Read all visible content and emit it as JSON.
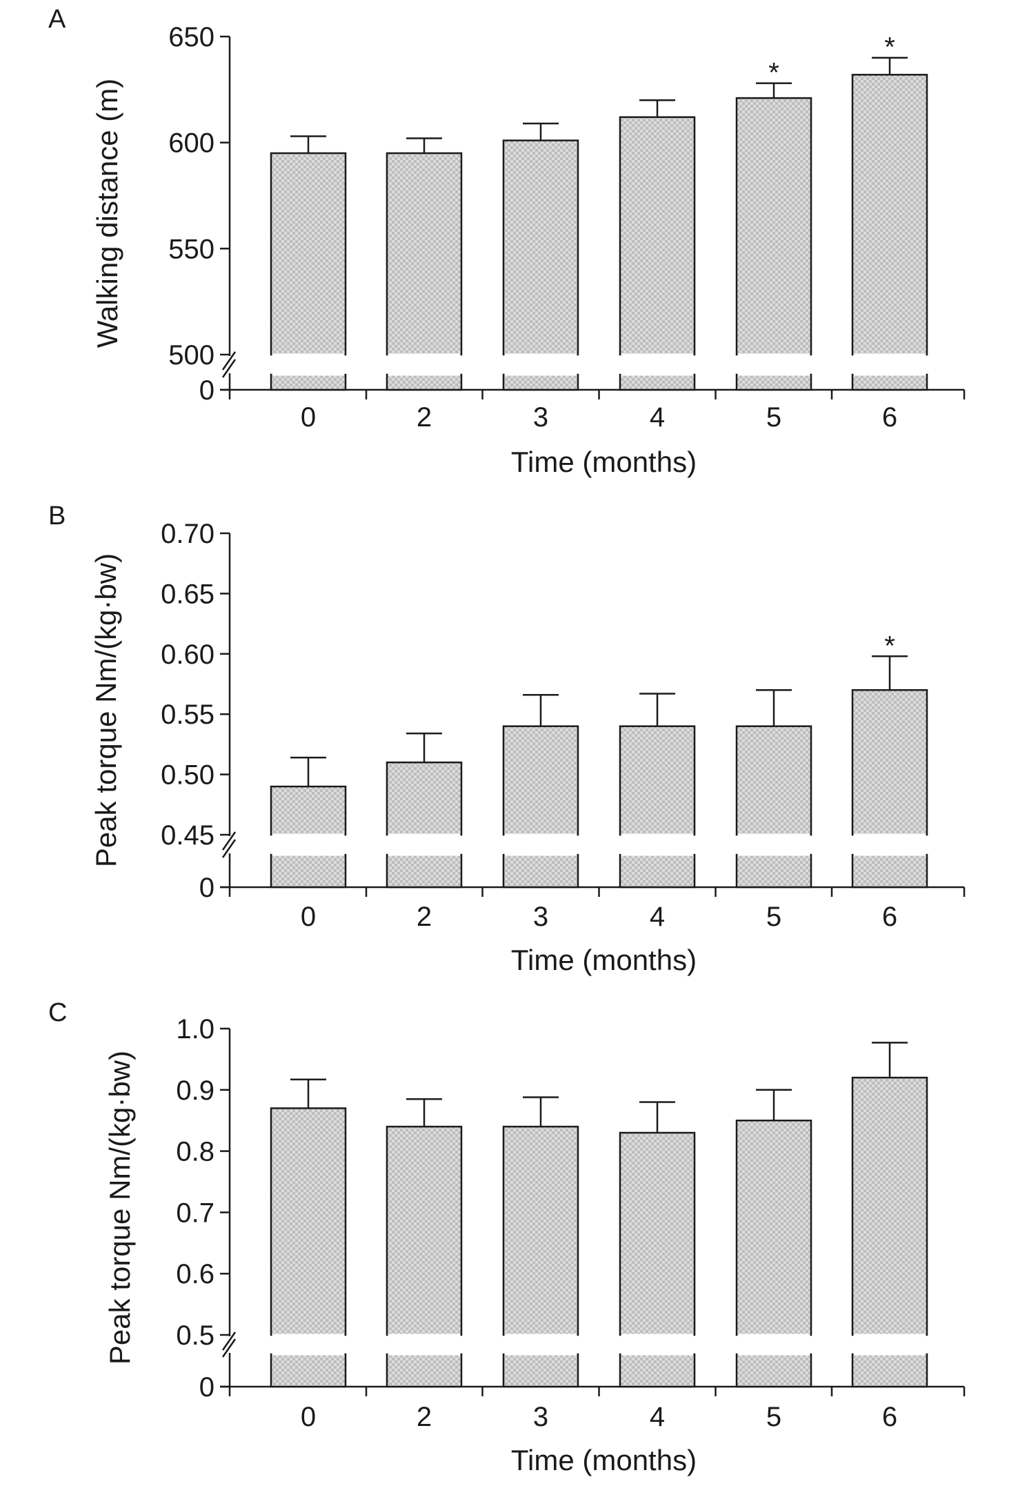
{
  "chart_data": [
    {
      "type": "bar",
      "panel_label": "A",
      "xlabel": "Time (months)",
      "ylabel": "Walking distance (m)",
      "categories": [
        "0",
        "2",
        "3",
        "4",
        "5",
        "6"
      ],
      "values": [
        595,
        595,
        601,
        612,
        621,
        632
      ],
      "error_upper": [
        8,
        7,
        8,
        8,
        7,
        8
      ],
      "significance": [
        "",
        "",
        "",
        "",
        "*",
        "*"
      ],
      "ylim": [
        500,
        650
      ],
      "yticks": [
        "0",
        "500",
        "550",
        "600",
        "650"
      ],
      "axis_break": true,
      "grid": false
    },
    {
      "type": "bar",
      "panel_label": "B",
      "xlabel": "Time (months)",
      "ylabel": "Peak torque Nm/(kg·bw)",
      "categories": [
        "0",
        "2",
        "3",
        "4",
        "5",
        "6"
      ],
      "values": [
        0.49,
        0.51,
        0.54,
        0.54,
        0.54,
        0.57
      ],
      "error_upper": [
        0.024,
        0.024,
        0.026,
        0.027,
        0.03,
        0.028
      ],
      "significance": [
        "",
        "",
        "",
        "",
        "",
        "*"
      ],
      "ylim": [
        0.45,
        0.7
      ],
      "yticks": [
        "0",
        "0.45",
        "0.50",
        "0.55",
        "0.60",
        "0.65",
        "0.70"
      ],
      "axis_break": true,
      "grid": false
    },
    {
      "type": "bar",
      "panel_label": "C",
      "xlabel": "Time (months)",
      "ylabel": "Peak torque Nm/(kg·bw)",
      "categories": [
        "0",
        "2",
        "3",
        "4",
        "5",
        "6"
      ],
      "values": [
        0.87,
        0.84,
        0.84,
        0.83,
        0.85,
        0.92
      ],
      "error_upper": [
        0.047,
        0.045,
        0.048,
        0.05,
        0.05,
        0.057
      ],
      "significance": [
        "",
        "",
        "",
        "",
        "",
        ""
      ],
      "ylim": [
        0.5,
        1.0
      ],
      "yticks": [
        "0",
        "0.5",
        "0.6",
        "0.7",
        "0.8",
        "0.9",
        "1.0"
      ],
      "axis_break": true,
      "grid": false
    }
  ]
}
